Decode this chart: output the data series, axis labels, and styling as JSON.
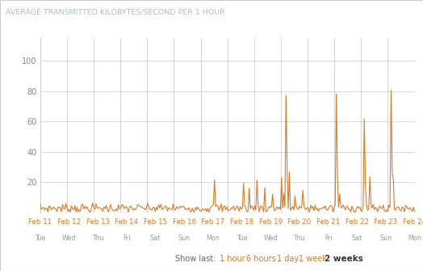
{
  "title": "AVERAGE TRANSMITTED KILOBYTES/SECOND PER 1 HOUR",
  "title_color": "#b0bec5",
  "title_fontsize": 6.8,
  "background_color": "#ffffff",
  "plot_bg_color": "#ffffff",
  "line_color": "#e07820",
  "grid_color": "#cccccc",
  "ytick_color": "#888888",
  "xtick_date_color": "#e07820",
  "xtick_day_color": "#999999",
  "ylim": [
    0,
    115
  ],
  "yticks": [
    20,
    40,
    60,
    80,
    100
  ],
  "show_last_text": "Show last:",
  "show_last_labels": [
    "1 hour",
    "6 hours",
    "1 day",
    "1 week",
    "2 weeks"
  ],
  "show_last_bold": "2 weeks",
  "show_last_color": "#e07820",
  "show_last_bold_color": "#333333",
  "show_last_text_color": "#666666",
  "date_labels": [
    "Feb 11",
    "Feb 12",
    "Feb 13",
    "Feb 14",
    "Feb 15",
    "Feb 16",
    "Feb 17",
    "Feb 18",
    "Feb 19",
    "Feb 20",
    "Feb 21",
    "Feb 22",
    "Feb 23",
    "Feb 24"
  ],
  "day_of_week": [
    "Tue",
    "Wed",
    "Thu",
    "Fri",
    "Sat",
    "Sun",
    "Mon",
    "Tue",
    "Wed",
    "Thu",
    "Fri",
    "Sat",
    "Sun",
    "Mon"
  ],
  "num_points": 336,
  "border_color": "#cccccc"
}
